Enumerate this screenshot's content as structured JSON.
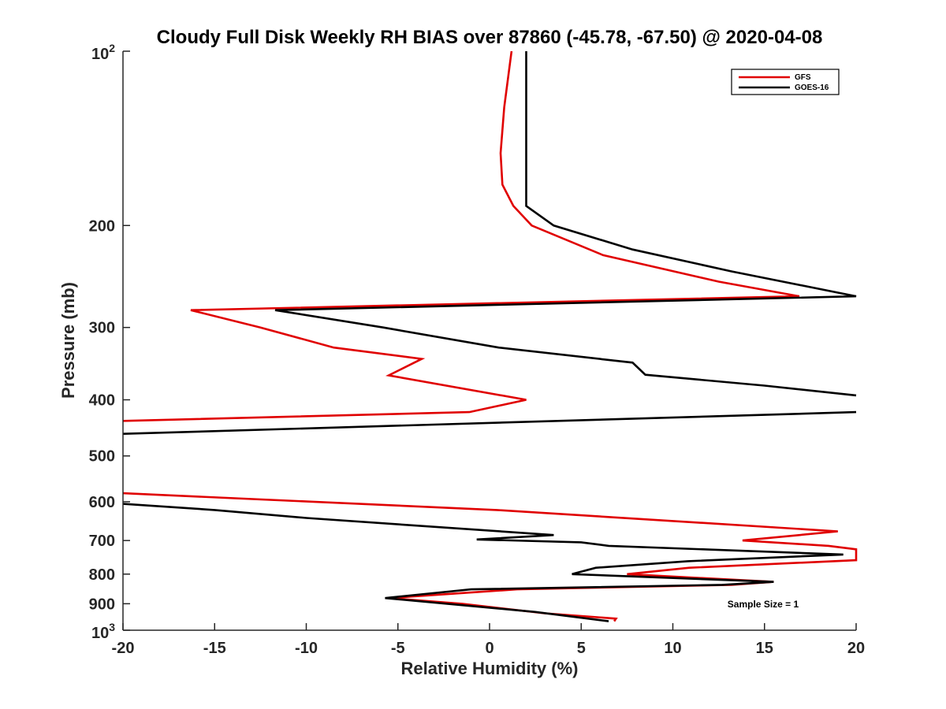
{
  "chart_data": {
    "type": "line",
    "title": "Cloudy Full Disk Weekly RH BIAS over 87860 (-45.78, -67.50) @ 2020-04-08",
    "xlabel": "Relative Humidity (%)",
    "ylabel": "Pressure (mb)",
    "xlim": [
      -20,
      20
    ],
    "ylim": [
      100,
      1000
    ],
    "y_scale": "log",
    "y_reversed": true,
    "x_ticks": [
      "-20",
      "-15",
      "-10",
      "-5",
      "0",
      "5",
      "10",
      "15",
      "20"
    ],
    "y_ticks": [
      "200",
      "300",
      "400",
      "500",
      "600",
      "700",
      "800",
      "900"
    ],
    "y_tick_top": {
      "base": "10",
      "exp": "2"
    },
    "y_tick_bottom": {
      "base": "10",
      "exp": "3"
    },
    "grid": false,
    "legend_position": "top-right",
    "series": [
      {
        "name": "GFS",
        "color": "#e00000",
        "points": [
          {
            "x": 1.2,
            "y": 100
          },
          {
            "x": 0.8,
            "y": 125
          },
          {
            "x": 0.6,
            "y": 150
          },
          {
            "x": 0.7,
            "y": 170
          },
          {
            "x": 1.3,
            "y": 185
          },
          {
            "x": 2.3,
            "y": 200
          },
          {
            "x": 6.2,
            "y": 225
          },
          {
            "x": 12.5,
            "y": 250
          },
          {
            "x": 16.9,
            "y": 265
          },
          {
            "x": -16.3,
            "y": 280
          },
          {
            "x": -12.5,
            "y": 300
          },
          {
            "x": -8.5,
            "y": 325
          },
          {
            "x": -3.7,
            "y": 340
          },
          {
            "x": -5.5,
            "y": 363
          },
          {
            "x": 2.0,
            "y": 400
          },
          {
            "x": -1.1,
            "y": 420
          },
          {
            "x": -20.0,
            "y": 435
          }
        ]
      },
      {
        "name": "GFS",
        "color": "#e00000",
        "points": [
          {
            "x": -20.0,
            "y": 580
          },
          {
            "x": 0.4,
            "y": 620
          },
          {
            "x": 19.0,
            "y": 675
          },
          {
            "x": 13.8,
            "y": 700
          },
          {
            "x": 18.5,
            "y": 715
          },
          {
            "x": 20.0,
            "y": 725
          },
          {
            "x": 20.0,
            "y": 757
          },
          {
            "x": 10.9,
            "y": 780
          },
          {
            "x": 7.5,
            "y": 800
          },
          {
            "x": 15.5,
            "y": 825
          },
          {
            "x": 13.2,
            "y": 835
          },
          {
            "x": 1.5,
            "y": 850
          },
          {
            "x": -5.5,
            "y": 880
          },
          {
            "x": -1.5,
            "y": 900
          },
          {
            "x": 3.0,
            "y": 935
          },
          {
            "x": 6.9,
            "y": 955
          },
          {
            "x": 6.8,
            "y": 965
          }
        ]
      },
      {
        "name": "GOES-16",
        "color": "#000000",
        "points": [
          {
            "x": 2.0,
            "y": 100
          },
          {
            "x": 2.0,
            "y": 150
          },
          {
            "x": 2.0,
            "y": 185
          },
          {
            "x": 3.5,
            "y": 200
          },
          {
            "x": 7.8,
            "y": 220
          },
          {
            "x": 13.2,
            "y": 240
          },
          {
            "x": 20.0,
            "y": 265
          },
          {
            "x": -11.7,
            "y": 280
          },
          {
            "x": -5.8,
            "y": 300
          },
          {
            "x": 0.5,
            "y": 325
          },
          {
            "x": 7.8,
            "y": 345
          },
          {
            "x": 8.5,
            "y": 362
          },
          {
            "x": 15.0,
            "y": 378
          },
          {
            "x": 20.0,
            "y": 393
          }
        ]
      },
      {
        "name": "GOES-16",
        "color": "#000000",
        "points": [
          {
            "x": 20.0,
            "y": 420
          },
          {
            "x": -20.0,
            "y": 458
          }
        ]
      },
      {
        "name": "GOES-16",
        "color": "#000000",
        "points": [
          {
            "x": -20.0,
            "y": 605
          },
          {
            "x": -15.0,
            "y": 620
          },
          {
            "x": -10.0,
            "y": 640
          },
          {
            "x": 3.5,
            "y": 685
          },
          {
            "x": -0.7,
            "y": 697
          },
          {
            "x": 5.0,
            "y": 705
          },
          {
            "x": 6.5,
            "y": 715
          },
          {
            "x": 19.3,
            "y": 740
          },
          {
            "x": 10.8,
            "y": 760
          },
          {
            "x": 5.8,
            "y": 780
          },
          {
            "x": 4.5,
            "y": 800
          },
          {
            "x": 15.5,
            "y": 825
          },
          {
            "x": 12.7,
            "y": 835
          },
          {
            "x": -1.0,
            "y": 850
          },
          {
            "x": -5.7,
            "y": 880
          },
          {
            "x": 2.5,
            "y": 930
          },
          {
            "x": 6.5,
            "y": 965
          }
        ]
      }
    ],
    "legend": [
      {
        "label": "GFS",
        "color": "#e00000"
      },
      {
        "label": "GOES-16",
        "color": "#000000"
      }
    ],
    "annotation": "Sample Size = 1"
  }
}
